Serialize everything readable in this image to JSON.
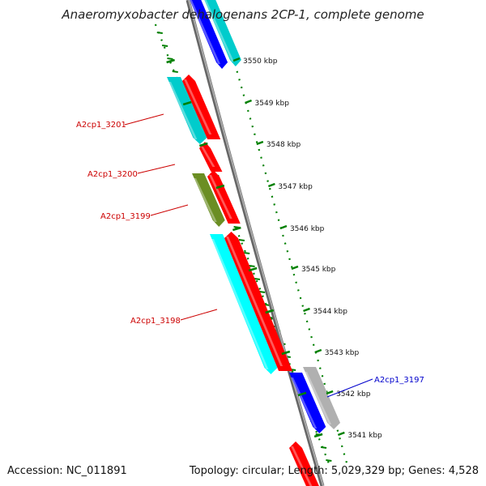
{
  "title": "Anaeromyxobacter dehalogenans 2CP-1, complete genome",
  "accession_text": "Accession: NC_011891",
  "topology_text": "Topology: circular; Length: 5,029,329 bp; Genes: 4,528",
  "colors": {
    "forward_cds": "#ff0000",
    "reverse_cds": "#0000ff",
    "cyan_feature": "#00cccc",
    "bright_cyan_feature": "#00ffff",
    "olive_feature": "#6b8e23",
    "grey_feature": "#b0b0b0",
    "tick_green": "#008000",
    "backbone": "#888888",
    "label_red": "#cc0000",
    "label_blue": "#0000cc"
  },
  "ticks": [
    {
      "label": "3550 kbp"
    },
    {
      "label": "3549 kbp"
    },
    {
      "label": "3548 kbp"
    },
    {
      "label": "3547 kbp"
    },
    {
      "label": "3546 kbp"
    },
    {
      "label": "3545 kbp"
    },
    {
      "label": "3544 kbp"
    },
    {
      "label": "3543 kbp"
    },
    {
      "label": "3542 kbp"
    },
    {
      "label": "3541 kbp"
    }
  ],
  "gene_labels": [
    {
      "id": "A2cp1_3201",
      "color": "red"
    },
    {
      "id": "A2cp1_3200",
      "color": "red"
    },
    {
      "id": "A2cp1_3199",
      "color": "red"
    },
    {
      "id": "A2cp1_3198",
      "color": "red"
    },
    {
      "id": "A2cp1_3197",
      "color": "blue"
    }
  ]
}
